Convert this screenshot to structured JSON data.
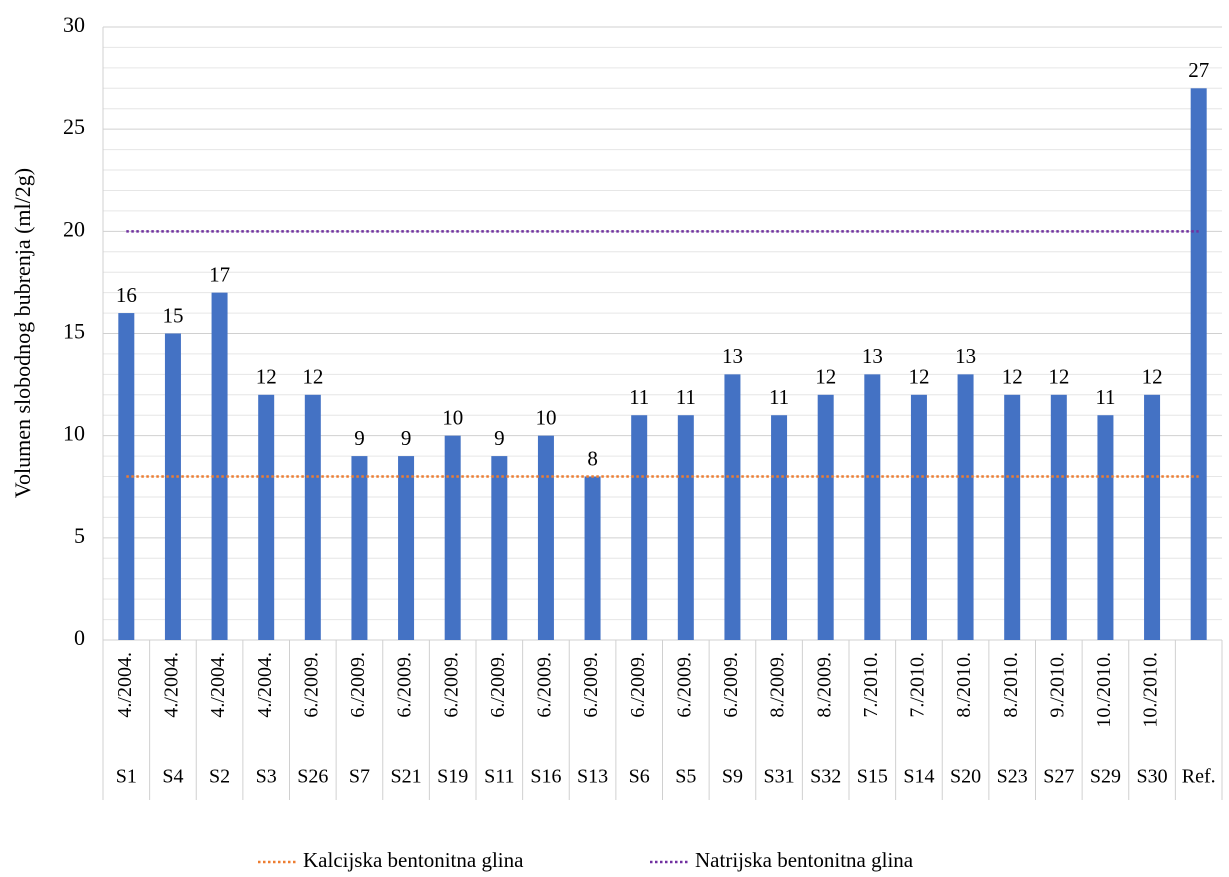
{
  "chart_data": {
    "type": "bar",
    "y_label": "Volumen slobodnog bubrenja (ml/2g)",
    "categories": [
      "S1",
      "S4",
      "S2",
      "S3",
      "S26",
      "S7",
      "S21",
      "S19",
      "S11",
      "S16",
      "S13",
      "S6",
      "S5",
      "S9",
      "S31",
      "S32",
      "S15",
      "S14",
      "S20",
      "S23",
      "S27",
      "S29",
      "S30",
      "Ref."
    ],
    "dates": [
      "4./2004.",
      "4./2004.",
      "4./2004.",
      "4./2004.",
      "6./2009.",
      "6./2009.",
      "6./2009.",
      "6./2009.",
      "6./2009.",
      "6./2009.",
      "6./2009.",
      "6./2009.",
      "6./2009.",
      "6./2009.",
      "8./2009.",
      "8./2009.",
      "7./2010.",
      "7./2010.",
      "8./2010.",
      "8./2010.",
      "9./2010.",
      "10./2010.",
      "10./2010.",
      null
    ],
    "values": [
      16,
      15,
      17,
      12,
      12,
      9,
      9,
      10,
      9,
      10,
      8,
      11,
      11,
      13,
      11,
      12,
      13,
      12,
      13,
      12,
      12,
      11,
      12,
      27
    ],
    "color": "#4472c4",
    "reference_lines": [
      {
        "name": "Kalcijska bentonitna glina",
        "color": "#ed7d31",
        "value": 8
      },
      {
        "name": "Natrijska bentonitna glina",
        "color": "#7030a0",
        "value": 20
      }
    ],
    "ylim": [
      0,
      30
    ],
    "yticks": [
      0,
      5,
      10,
      15,
      20,
      25,
      30
    ],
    "grid": true,
    "minor_grid": true,
    "legend": "bottom"
  }
}
